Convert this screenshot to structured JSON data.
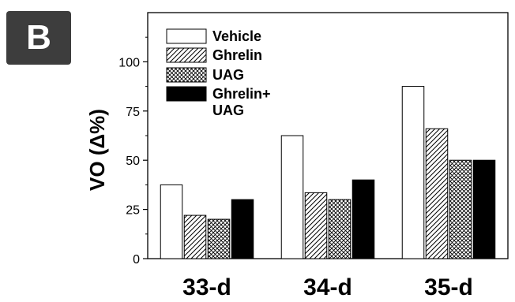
{
  "panel_label": "B",
  "chart_data": {
    "type": "bar",
    "categories": [
      "33-d",
      "34-d",
      "35-d"
    ],
    "series": [
      {
        "name": "Vehicle",
        "values": [
          37.5,
          62.5,
          87.5
        ]
      },
      {
        "name": "Ghrelin",
        "values": [
          22,
          33.5,
          66
        ]
      },
      {
        "name": "UAG",
        "values": [
          20,
          30,
          50
        ]
      },
      {
        "name": "Ghrelin+UAG",
        "values": [
          30,
          40,
          50
        ]
      }
    ],
    "legend_labels": [
      [
        "Vehicle"
      ],
      [
        "Ghrelin"
      ],
      [
        "UAG"
      ],
      [
        "Ghrelin+",
        "UAG"
      ]
    ],
    "ylabel": "VO (Δ%)",
    "xlabel": "",
    "ylim": [
      0,
      125
    ],
    "yticks": [
      "0",
      "25",
      "50",
      "75",
      "100"
    ],
    "legend_position": "top-left",
    "grid": false,
    "series_fills": [
      "white",
      "diagonal-hatch",
      "cross-hatch",
      "solid-black"
    ]
  }
}
